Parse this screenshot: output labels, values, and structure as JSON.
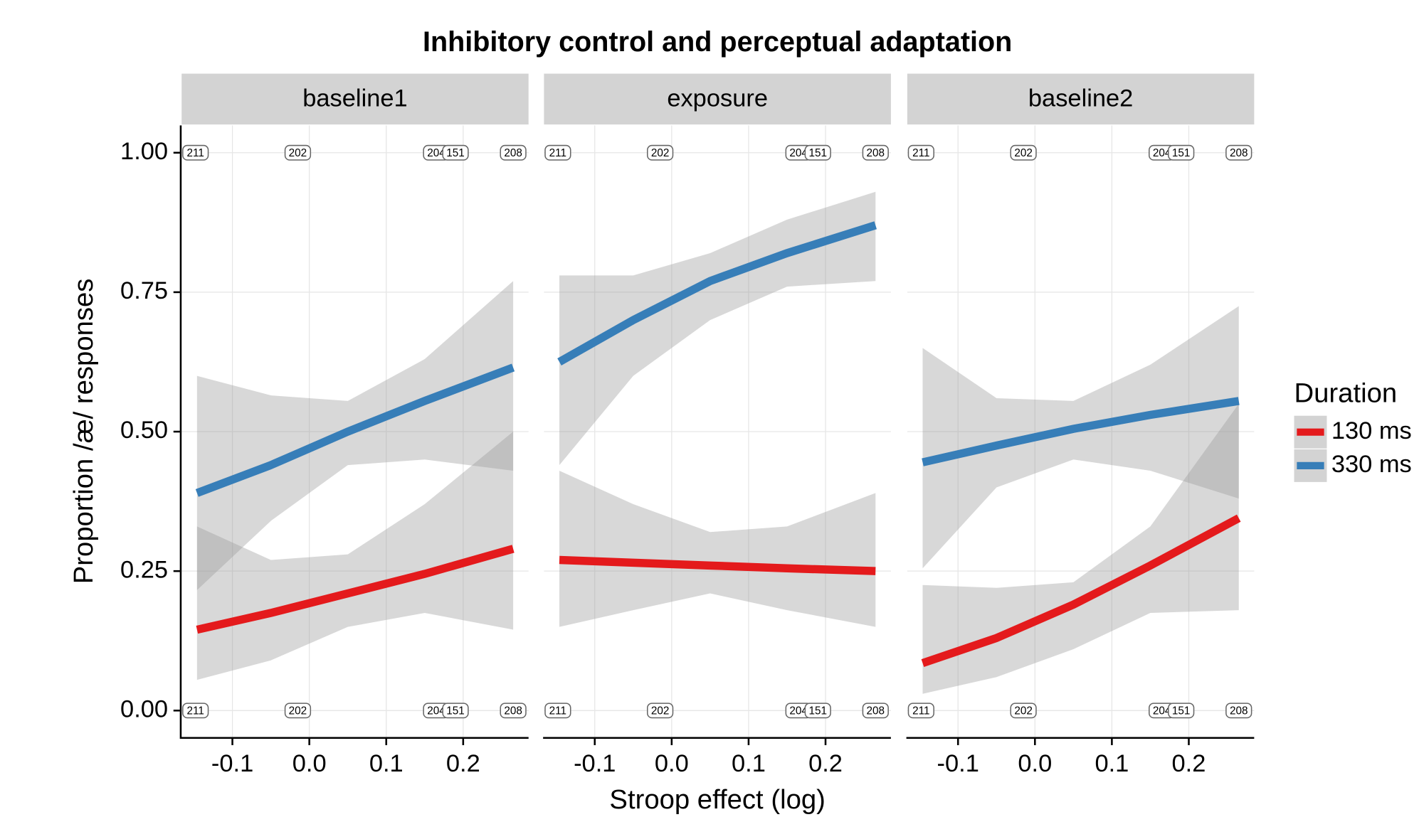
{
  "chart_data": {
    "type": "line",
    "title": "Inhibitory control and perceptual adaptation",
    "xlabel": "Stroop effect (log)",
    "ylabel": "Proportion /æ/ responses",
    "legend_title": "Duration",
    "x": [
      -0.146,
      -0.05,
      0.05,
      0.15,
      0.265
    ],
    "xlim": [
      -0.166,
      0.285
    ],
    "ylim": [
      -0.049,
      1.049
    ],
    "xticks": [
      -0.1,
      {
        "value": 0,
        "label": "0.0"
      },
      0.1,
      0.2
    ],
    "yticks": [
      {
        "value": 0,
        "label": "0.00"
      },
      0.25,
      {
        "value": 0.5,
        "label": "0.50"
      },
      0.75,
      {
        "value": 1,
        "label": "1.00"
      }
    ],
    "grid": true,
    "id_labels": [
      {
        "x": -0.148,
        "label": "211"
      },
      {
        "x": -0.015,
        "label": "202"
      },
      {
        "x": 0.165,
        "label": "204"
      },
      {
        "x": 0.19,
        "label": "151"
      },
      {
        "x": 0.265,
        "label": "208"
      }
    ],
    "panels": [
      {
        "title": "baseline1",
        "series": [
          {
            "name": "130 ms",
            "color": "#e41a1c",
            "values": [
              0.145,
              0.175,
              0.21,
              0.245,
              0.29
            ],
            "lower": [
              0.055,
              0.09,
              0.15,
              0.175,
              0.145
            ],
            "upper": [
              0.33,
              0.27,
              0.28,
              0.37,
              0.5
            ]
          },
          {
            "name": "330 ms",
            "color": "#377eb8",
            "values": [
              0.39,
              0.44,
              0.5,
              0.555,
              0.615
            ],
            "lower": [
              0.216,
              0.34,
              0.44,
              0.45,
              0.43
            ],
            "upper": [
              0.6,
              0.565,
              0.555,
              0.63,
              0.77
            ]
          }
        ]
      },
      {
        "title": "exposure",
        "series": [
          {
            "name": "130 ms",
            "color": "#e41a1c",
            "values": [
              0.27,
              0.265,
              0.26,
              0.255,
              0.25
            ],
            "lower": [
              0.15,
              0.18,
              0.21,
              0.18,
              0.15
            ],
            "upper": [
              0.43,
              0.37,
              0.32,
              0.33,
              0.39
            ]
          },
          {
            "name": "330 ms",
            "color": "#377eb8",
            "values": [
              0.625,
              0.7,
              0.77,
              0.82,
              0.87
            ],
            "lower": [
              0.44,
              0.6,
              0.7,
              0.76,
              0.77
            ],
            "upper": [
              0.78,
              0.78,
              0.82,
              0.88,
              0.93
            ]
          }
        ]
      },
      {
        "title": "baseline2",
        "series": [
          {
            "name": "130 ms",
            "color": "#e41a1c",
            "values": [
              0.085,
              0.13,
              0.19,
              0.26,
              0.345
            ],
            "lower": [
              0.03,
              0.06,
              0.11,
              0.175,
              0.18
            ],
            "upper": [
              0.225,
              0.22,
              0.23,
              0.33,
              0.55
            ]
          },
          {
            "name": "330 ms",
            "color": "#377eb8",
            "values": [
              0.445,
              0.475,
              0.505,
              0.53,
              0.555
            ],
            "lower": [
              0.255,
              0.4,
              0.45,
              0.43,
              0.38
            ],
            "upper": [
              0.65,
              0.56,
              0.555,
              0.62,
              0.725
            ]
          }
        ]
      }
    ]
  }
}
